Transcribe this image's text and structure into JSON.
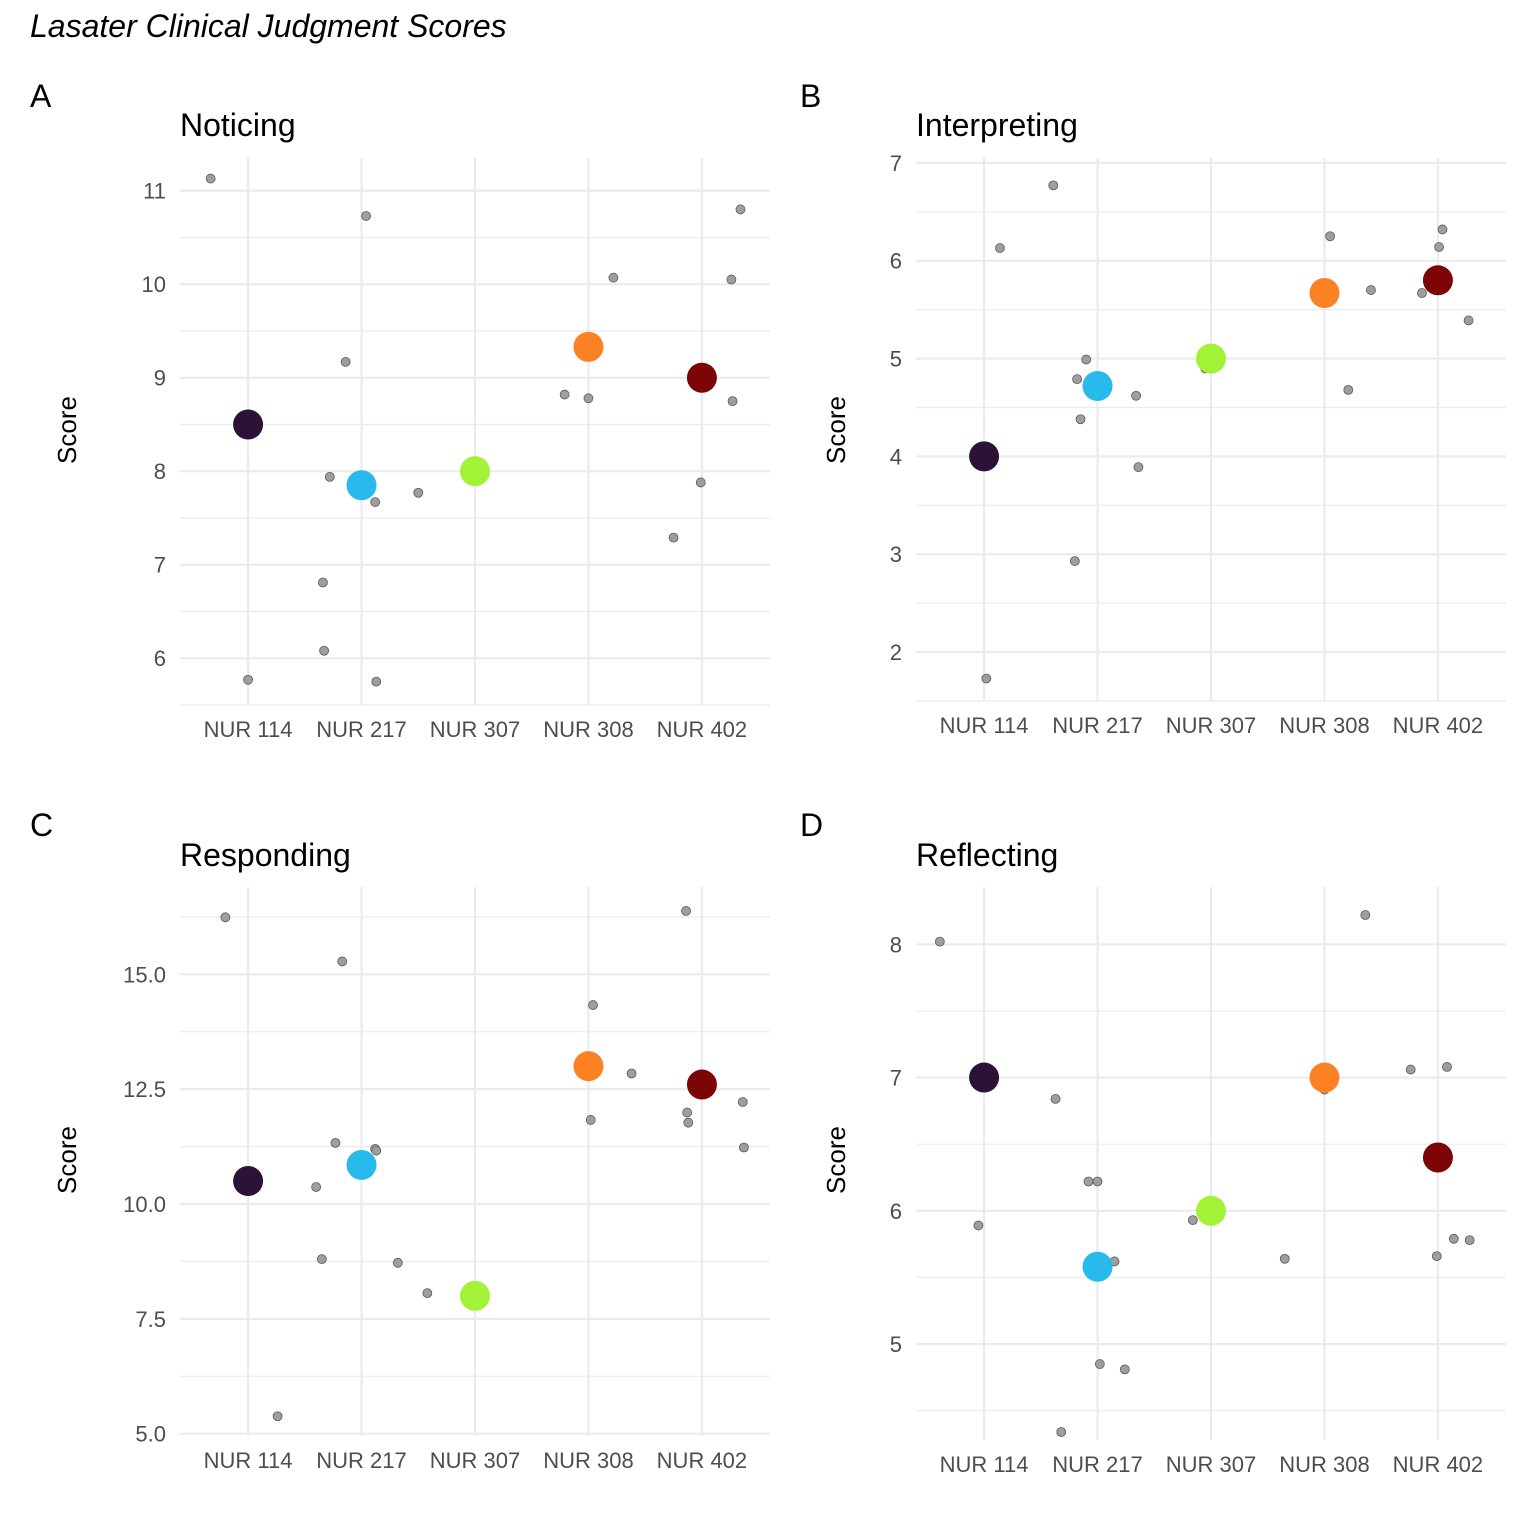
{
  "figure": {
    "title": "Lasater Clinical Judgment Scores",
    "colors": {
      "NUR 114": "#2C1237",
      "NUR 217": "#27BAEA",
      "NUR 307": "#A2F237",
      "NUR 308": "#FC8124",
      "NUR 402": "#7C0506",
      "raw_point": "#9E9E9E",
      "grid": "#EBEBEB"
    }
  },
  "chart_data": [
    {
      "type": "scatter",
      "tag": "A",
      "title": "Noticing",
      "xlabel": "",
      "ylabel": "Score",
      "categories": [
        "NUR 114",
        "NUR 217",
        "NUR 307",
        "NUR 308",
        "NUR 402"
      ],
      "ylim": [
        5.5,
        11.35
      ],
      "yticks": [
        6,
        7,
        8,
        9,
        10,
        11
      ],
      "ytick_labels": [
        "6",
        "7",
        "8",
        "9",
        "10",
        "11"
      ],
      "grid": true,
      "means": [
        8.5,
        7.85,
        8.0,
        9.33,
        9.0
      ],
      "points": [
        {
          "x": 0.67,
          "y": 11.13
        },
        {
          "x": 1.0,
          "y": 5.77
        },
        {
          "x": 1.66,
          "y": 6.81
        },
        {
          "x": 1.67,
          "y": 6.08
        },
        {
          "x": 1.72,
          "y": 7.94
        },
        {
          "x": 1.86,
          "y": 9.17
        },
        {
          "x": 2.04,
          "y": 10.73
        },
        {
          "x": 2.12,
          "y": 7.67
        },
        {
          "x": 2.13,
          "y": 5.75
        },
        {
          "x": 2.5,
          "y": 7.77
        },
        {
          "x": 3.79,
          "y": 8.82
        },
        {
          "x": 4.0,
          "y": 8.78
        },
        {
          "x": 4.22,
          "y": 10.07
        },
        {
          "x": 4.75,
          "y": 7.29
        },
        {
          "x": 4.99,
          "y": 7.88
        },
        {
          "x": 5.26,
          "y": 10.05
        },
        {
          "x": 5.27,
          "y": 8.75
        },
        {
          "x": 5.34,
          "y": 10.8
        }
      ]
    },
    {
      "type": "scatter",
      "tag": "B",
      "title": "Interpreting",
      "xlabel": "",
      "ylabel": "Score",
      "categories": [
        "NUR 114",
        "NUR 217",
        "NUR 307",
        "NUR 308",
        "NUR 402"
      ],
      "ylim": [
        1.5,
        7.05
      ],
      "yticks": [
        2,
        3,
        4,
        5,
        6,
        7
      ],
      "ytick_labels": [
        "2",
        "3",
        "4",
        "5",
        "6",
        "7"
      ],
      "grid": true,
      "means": [
        4.0,
        4.72,
        5.0,
        5.67,
        5.8
      ],
      "points": [
        {
          "x": 1.02,
          "y": 1.73
        },
        {
          "x": 1.14,
          "y": 6.13
        },
        {
          "x": 1.61,
          "y": 6.77
        },
        {
          "x": 1.8,
          "y": 2.93
        },
        {
          "x": 1.82,
          "y": 4.79
        },
        {
          "x": 1.85,
          "y": 4.38
        },
        {
          "x": 1.9,
          "y": 4.99
        },
        {
          "x": 2.34,
          "y": 4.62
        },
        {
          "x": 2.36,
          "y": 3.89
        },
        {
          "x": 2.95,
          "y": 4.9
        },
        {
          "x": 4.05,
          "y": 6.25
        },
        {
          "x": 4.21,
          "y": 4.68
        },
        {
          "x": 4.41,
          "y": 5.7
        },
        {
          "x": 4.86,
          "y": 5.67
        },
        {
          "x": 5.01,
          "y": 6.14
        },
        {
          "x": 5.04,
          "y": 6.32
        },
        {
          "x": 5.06,
          "y": 5.77
        },
        {
          "x": 5.27,
          "y": 5.39
        }
      ]
    },
    {
      "type": "scatter",
      "tag": "C",
      "title": "Responding",
      "xlabel": "",
      "ylabel": "Score",
      "categories": [
        "NUR 114",
        "NUR 217",
        "NUR 307",
        "NUR 308",
        "NUR 402"
      ],
      "ylim": [
        4.95,
        16.9
      ],
      "yticks": [
        5.0,
        7.5,
        10.0,
        12.5,
        15.0
      ],
      "ytick_labels": [
        "5.0",
        "7.5",
        "10.0",
        "12.5",
        "15.0"
      ],
      "grid": true,
      "means": [
        10.5,
        10.85,
        8.0,
        13.0,
        12.6
      ],
      "points": [
        {
          "x": 0.8,
          "y": 16.24
        },
        {
          "x": 1.26,
          "y": 5.38
        },
        {
          "x": 1.6,
          "y": 10.37
        },
        {
          "x": 1.65,
          "y": 8.8
        },
        {
          "x": 1.77,
          "y": 11.33
        },
        {
          "x": 1.83,
          "y": 15.28
        },
        {
          "x": 2.12,
          "y": 11.2
        },
        {
          "x": 2.13,
          "y": 11.16
        },
        {
          "x": 2.32,
          "y": 8.72
        },
        {
          "x": 2.58,
          "y": 8.06
        },
        {
          "x": 4.02,
          "y": 11.83
        },
        {
          "x": 4.04,
          "y": 14.33
        },
        {
          "x": 4.38,
          "y": 12.84
        },
        {
          "x": 4.86,
          "y": 16.38
        },
        {
          "x": 4.87,
          "y": 11.99
        },
        {
          "x": 4.88,
          "y": 11.77
        },
        {
          "x": 5.36,
          "y": 12.22
        },
        {
          "x": 5.37,
          "y": 11.23
        }
      ]
    },
    {
      "type": "scatter",
      "tag": "D",
      "title": "Reflecting",
      "xlabel": "",
      "ylabel": "Score",
      "categories": [
        "NUR 114",
        "NUR 217",
        "NUR 307",
        "NUR 308",
        "NUR 402"
      ],
      "ylim": [
        4.28,
        8.43
      ],
      "yticks": [
        5,
        6,
        7,
        8
      ],
      "ytick_labels": [
        "5",
        "6",
        "7",
        "8"
      ],
      "grid": true,
      "means": [
        7.0,
        5.58,
        6.0,
        7.0,
        6.4
      ],
      "points": [
        {
          "x": 0.61,
          "y": 8.02
        },
        {
          "x": 0.95,
          "y": 5.89
        },
        {
          "x": 1.63,
          "y": 6.84
        },
        {
          "x": 1.68,
          "y": 4.34
        },
        {
          "x": 1.92,
          "y": 6.22
        },
        {
          "x": 2.0,
          "y": 6.22
        },
        {
          "x": 2.02,
          "y": 4.85
        },
        {
          "x": 2.15,
          "y": 5.62
        },
        {
          "x": 2.24,
          "y": 4.81
        },
        {
          "x": 2.84,
          "y": 5.93
        },
        {
          "x": 3.65,
          "y": 5.64
        },
        {
          "x": 4.0,
          "y": 6.91
        },
        {
          "x": 4.36,
          "y": 8.22
        },
        {
          "x": 4.76,
          "y": 7.06
        },
        {
          "x": 4.99,
          "y": 5.66
        },
        {
          "x": 5.08,
          "y": 7.08
        },
        {
          "x": 5.14,
          "y": 5.79
        },
        {
          "x": 5.28,
          "y": 5.78
        }
      ]
    }
  ]
}
